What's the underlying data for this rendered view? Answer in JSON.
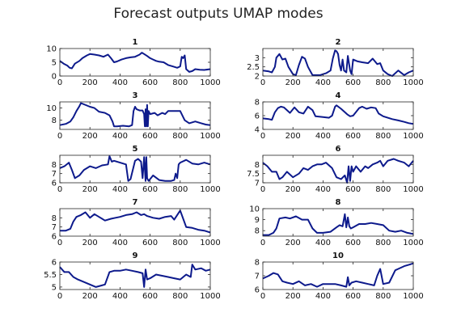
{
  "figure": {
    "title": "Forecast outputs UMAP modes"
  },
  "chart_data": [
    {
      "type": "line",
      "title": "1",
      "xlim": [
        0,
        1000
      ],
      "ylim": [
        0,
        10
      ],
      "xticks": [
        0,
        200,
        400,
        600,
        800,
        1000
      ],
      "yticks": [
        0,
        5,
        10
      ],
      "x": [
        0,
        25,
        50,
        65,
        80,
        100,
        130,
        150,
        180,
        200,
        230,
        260,
        290,
        320,
        340,
        360,
        380,
        410,
        440,
        470,
        500,
        530,
        545,
        560,
        580,
        600,
        620,
        640,
        660,
        690,
        720,
        750,
        780,
        800,
        810,
        820,
        830,
        840,
        860,
        880,
        900,
        930,
        960,
        1000
      ],
      "values": [
        5.5,
        4.5,
        3.8,
        3,
        2.8,
        4.5,
        5.5,
        6.5,
        7.5,
        8,
        7.8,
        7.5,
        7,
        7.8,
        6.5,
        5,
        5.3,
        6,
        6.5,
        6.8,
        7,
        7.8,
        8.5,
        8,
        7.3,
        6.5,
        6,
        5.5,
        5.2,
        5,
        4,
        3.5,
        3,
        3.5,
        7,
        6.5,
        7.5,
        2.5,
        1.5,
        1.8,
        2.5,
        2.3,
        2.2,
        2.5
      ],
      "series": [
        {
          "color": "#0d1a8c"
        }
      ]
    },
    {
      "type": "line",
      "title": "2",
      "xlim": [
        0,
        1000
      ],
      "ylim": [
        2,
        3.5
      ],
      "xticks": [
        0,
        200,
        400,
        600,
        800,
        1000
      ],
      "yticks": [
        2,
        2.5,
        3
      ],
      "x": [
        0,
        40,
        60,
        80,
        90,
        110,
        130,
        150,
        170,
        200,
        220,
        240,
        260,
        280,
        300,
        330,
        350,
        380,
        400,
        420,
        450,
        465,
        480,
        490,
        500,
        510,
        520,
        530,
        540,
        555,
        565,
        580,
        590,
        600,
        630,
        660,
        700,
        730,
        760,
        780,
        800,
        830,
        860,
        900,
        940,
        970,
        1000
      ],
      "values": [
        2.3,
        2.25,
        2.2,
        2.5,
        3,
        3.2,
        2.9,
        2.95,
        2.5,
        2.1,
        2.05,
        2.6,
        3.05,
        2.95,
        2.5,
        2.05,
        2.05,
        2.05,
        2.1,
        2.15,
        2.3,
        2.95,
        3.4,
        3.35,
        3.2,
        2.6,
        2.3,
        2.9,
        2.3,
        2.2,
        3.1,
        2.3,
        2.1,
        2.9,
        2.8,
        2.75,
        2.7,
        2.95,
        2.65,
        2.7,
        2.3,
        2.1,
        2.0,
        2.3,
        2.05,
        2.2,
        2.3
      ],
      "series": [
        {
          "color": "#0d1a8c"
        }
      ]
    },
    {
      "type": "line",
      "title": "3",
      "xlim": [
        0,
        1000
      ],
      "ylim": [
        6.5,
        11
      ],
      "xticks": [
        0,
        200,
        400,
        600,
        800,
        1000
      ],
      "yticks": [
        8,
        10
      ],
      "x": [
        0,
        40,
        70,
        90,
        110,
        130,
        140,
        160,
        180,
        200,
        230,
        260,
        300,
        330,
        350,
        360,
        380,
        420,
        460,
        480,
        490,
        500,
        510,
        530,
        550,
        560,
        565,
        570,
        575,
        580,
        585,
        590,
        600,
        630,
        650,
        680,
        700,
        720,
        760,
        800,
        830,
        860,
        900,
        940,
        970,
        1000
      ],
      "values": [
        7.2,
        7.4,
        7.8,
        8.5,
        9.5,
        10.3,
        10.8,
        10.6,
        10.4,
        10.2,
        10,
        9.4,
        9.2,
        8.8,
        7.8,
        7,
        7,
        7.1,
        7,
        7.2,
        9.5,
        10.2,
        9.8,
        9.6,
        9.6,
        9,
        7,
        9.8,
        7,
        10.5,
        7,
        9.5,
        9,
        9.2,
        8.8,
        9.2,
        9,
        9.5,
        9.5,
        9.5,
        8,
        7.5,
        7.8,
        7.5,
        7.3,
        7.2
      ],
      "series": [
        {
          "color": "#0d1a8c"
        }
      ]
    },
    {
      "type": "line",
      "title": "4",
      "xlim": [
        0,
        1000
      ],
      "ylim": [
        4,
        8
      ],
      "xticks": [
        0,
        200,
        400,
        600,
        800,
        1000
      ],
      "yticks": [
        4,
        6,
        8
      ],
      "x": [
        0,
        40,
        60,
        80,
        100,
        120,
        140,
        180,
        210,
        240,
        270,
        300,
        330,
        350,
        400,
        440,
        460,
        480,
        490,
        520,
        560,
        580,
        600,
        640,
        660,
        690,
        720,
        750,
        770,
        800,
        830,
        860,
        900,
        940,
        970,
        1000
      ],
      "values": [
        5.6,
        5.5,
        5.4,
        6.5,
        7.1,
        7.3,
        7.2,
        6.4,
        7.2,
        6.5,
        6.3,
        7.3,
        6.8,
        5.9,
        5.8,
        5.7,
        6,
        7.3,
        7.5,
        7,
        6.2,
        5.9,
        6,
        7.1,
        7.3,
        7,
        7.2,
        7.1,
        6.3,
        5.9,
        5.7,
        5.5,
        5.3,
        5.1,
        4.9,
        4.8
      ],
      "series": [
        {
          "color": "#0d1a8c"
        }
      ]
    },
    {
      "type": "line",
      "title": "5",
      "xlim": [
        0,
        1000
      ],
      "ylim": [
        6,
        9
      ],
      "xticks": [
        0,
        200,
        400,
        600,
        800,
        1000
      ],
      "yticks": [
        6,
        7,
        8
      ],
      "x": [
        0,
        30,
        60,
        80,
        100,
        130,
        160,
        200,
        240,
        280,
        320,
        330,
        345,
        360,
        400,
        440,
        455,
        470,
        500,
        520,
        540,
        550,
        560,
        570,
        575,
        580,
        590,
        600,
        620,
        660,
        700,
        740,
        760,
        770,
        780,
        790,
        800,
        840,
        880,
        920,
        960,
        1000
      ],
      "values": [
        7.6,
        7.8,
        8.2,
        7.4,
        6.5,
        6.8,
        7.4,
        7.8,
        7.6,
        7.9,
        8,
        8.9,
        8.3,
        8.4,
        8.2,
        8,
        6.2,
        6.4,
        8.4,
        8.6,
        8.3,
        6.5,
        8.8,
        6.2,
        8.8,
        6.5,
        6.2,
        6.4,
        6.8,
        6.3,
        6.2,
        6.2,
        6.3,
        7,
        6.5,
        8,
        8.2,
        8.5,
        8.1,
        8.0,
        8.2,
        8.0
      ],
      "series": [
        {
          "color": "#0d1a8c"
        }
      ]
    },
    {
      "type": "line",
      "title": "6",
      "xlim": [
        0,
        1000
      ],
      "ylim": [
        7,
        8.5
      ],
      "xticks": [
        0,
        200,
        400,
        600,
        800,
        1000
      ],
      "yticks": [
        7,
        7.5,
        8
      ],
      "x": [
        0,
        30,
        60,
        90,
        110,
        130,
        160,
        200,
        240,
        270,
        300,
        330,
        360,
        390,
        420,
        460,
        490,
        520,
        545,
        560,
        570,
        580,
        590,
        600,
        620,
        650,
        680,
        700,
        730,
        760,
        780,
        800,
        830,
        870,
        900,
        940,
        970,
        1000
      ],
      "values": [
        8.1,
        7.9,
        7.6,
        7.6,
        7.2,
        7.3,
        7.6,
        7.3,
        7.5,
        7.8,
        7.7,
        7.9,
        8.0,
        8.0,
        8.1,
        7.8,
        7.3,
        7.2,
        7.4,
        7.0,
        7.9,
        7.1,
        7.9,
        7.6,
        7.9,
        7.6,
        7.9,
        7.8,
        8.0,
        8.1,
        8.2,
        7.9,
        8.2,
        8.3,
        8.2,
        8.1,
        7.9,
        8.2
      ],
      "series": [
        {
          "color": "#0d1a8c"
        }
      ]
    },
    {
      "type": "line",
      "title": "7",
      "xlim": [
        0,
        1000
      ],
      "ylim": [
        6,
        9
      ],
      "xticks": [
        0,
        200,
        400,
        600,
        800,
        1000
      ],
      "yticks": [
        6,
        7,
        8
      ],
      "x": [
        0,
        40,
        70,
        90,
        110,
        140,
        170,
        200,
        230,
        260,
        300,
        340,
        370,
        400,
        440,
        480,
        510,
        540,
        560,
        580,
        620,
        660,
        700,
        740,
        760,
        780,
        800,
        820,
        840,
        880,
        920,
        960,
        1000
      ],
      "values": [
        6.6,
        6.6,
        6.8,
        7.6,
        8.1,
        8.3,
        8.6,
        8.0,
        8.4,
        8.1,
        7.7,
        7.9,
        8.0,
        8.1,
        8.3,
        8.4,
        8.6,
        8.3,
        8.4,
        8.2,
        8.0,
        7.9,
        8.1,
        8.2,
        7.8,
        8.3,
        8.8,
        7.9,
        7.0,
        6.9,
        6.7,
        6.6,
        6.4
      ],
      "series": [
        {
          "color": "#0d1a8c"
        }
      ]
    },
    {
      "type": "line",
      "title": "8",
      "xlim": [
        0,
        1000
      ],
      "ylim": [
        7.5,
        10
      ],
      "xticks": [
        0,
        200,
        400,
        600,
        800,
        1000
      ],
      "yticks": [
        8,
        9,
        10
      ],
      "x": [
        0,
        40,
        70,
        90,
        110,
        150,
        180,
        220,
        260,
        300,
        330,
        360,
        400,
        450,
        490,
        510,
        530,
        545,
        555,
        565,
        575,
        585,
        600,
        640,
        680,
        720,
        760,
        800,
        840,
        880,
        920,
        960,
        1000
      ],
      "values": [
        7.6,
        7.6,
        7.8,
        8.2,
        9.1,
        9.2,
        9.1,
        9.3,
        9.0,
        9.0,
        8.2,
        7.8,
        7.8,
        7.9,
        8.3,
        8.5,
        8.4,
        9.5,
        8.3,
        9.2,
        8.4,
        8.2,
        8.3,
        8.6,
        8.6,
        8.7,
        8.6,
        8.5,
        8.0,
        7.9,
        8.0,
        7.8,
        7.7
      ],
      "series": [
        {
          "color": "#0d1a8c"
        }
      ]
    },
    {
      "type": "line",
      "title": "9",
      "xlim": [
        0,
        1000
      ],
      "ylim": [
        4.9,
        6
      ],
      "xticks": [
        0,
        200,
        400,
        600,
        800,
        1000
      ],
      "yticks": [
        5,
        5.5,
        6
      ],
      "x": [
        0,
        30,
        60,
        90,
        120,
        160,
        200,
        240,
        270,
        300,
        330,
        360,
        400,
        440,
        480,
        520,
        550,
        560,
        570,
        580,
        600,
        640,
        680,
        720,
        760,
        800,
        840,
        870,
        880,
        900,
        940,
        970,
        1000
      ],
      "values": [
        5.8,
        5.6,
        5.6,
        5.4,
        5.3,
        5.2,
        5.1,
        5.0,
        5.05,
        5.1,
        5.6,
        5.65,
        5.65,
        5.7,
        5.65,
        5.6,
        5.55,
        5.0,
        5.7,
        5.3,
        5.35,
        5.5,
        5.45,
        5.4,
        5.35,
        5.3,
        5.5,
        5.4,
        5.9,
        5.7,
        5.75,
        5.65,
        5.7
      ],
      "series": [
        {
          "color": "#0d1a8c"
        }
      ]
    },
    {
      "type": "line",
      "title": "10",
      "xlim": [
        0,
        1000
      ],
      "ylim": [
        6,
        8
      ],
      "xticks": [
        0,
        200,
        400,
        600,
        800,
        1000
      ],
      "yticks": [
        6,
        7,
        8
      ],
      "x": [
        0,
        40,
        70,
        100,
        130,
        160,
        200,
        240,
        280,
        320,
        360,
        400,
        440,
        480,
        520,
        555,
        565,
        575,
        590,
        620,
        660,
        700,
        740,
        760,
        780,
        800,
        840,
        880,
        900,
        940,
        970,
        1000
      ],
      "values": [
        6.8,
        7.0,
        7.2,
        7.1,
        6.6,
        6.5,
        6.4,
        6.6,
        6.3,
        6.4,
        6.2,
        6.4,
        6.4,
        6.4,
        6.3,
        6.2,
        6.9,
        6.3,
        6.5,
        6.6,
        6.5,
        6.4,
        6.3,
        7.0,
        7.5,
        6.4,
        6.5,
        7.4,
        7.5,
        7.7,
        7.8,
        7.9
      ],
      "series": [
        {
          "color": "#0d1a8c"
        }
      ]
    }
  ]
}
